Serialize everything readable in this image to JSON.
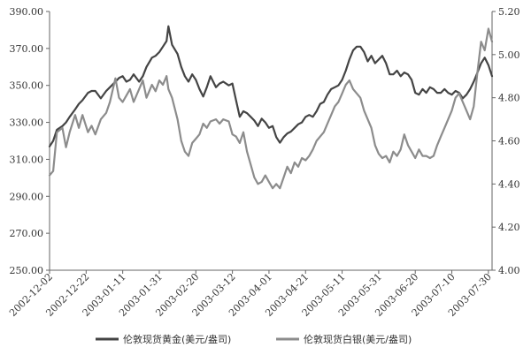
{
  "chart_data": {
    "type": "line",
    "title": "",
    "xlabel": "",
    "ylabel_left": "",
    "ylabel_right": "",
    "x_start": "2002-12-02",
    "x_end": "2003-08-01",
    "x_ticks": [
      "2002-12-02",
      "2002-12-22",
      "2003-01-11",
      "2003-01-31",
      "2003-02-20",
      "2003-03-12",
      "2003-04-01",
      "2003-04-21",
      "2003-05-11",
      "2003-05-31",
      "2003-06-20",
      "2003-07-10",
      "2003-07-30"
    ],
    "y_left": {
      "min": 250,
      "max": 390,
      "step": 20,
      "ticks": [
        "250.00",
        "270.00",
        "290.00",
        "310.00",
        "330.00",
        "350.00",
        "370.00",
        "390.00"
      ]
    },
    "y_right": {
      "min": 4.0,
      "max": 5.2,
      "step": 0.2,
      "ticks": [
        "4.00",
        "4.20",
        "4.40",
        "4.60",
        "4.80",
        "5.00",
        "5.20"
      ]
    },
    "grid": false,
    "legend_position": "bottom",
    "series": [
      {
        "name": "伦敦现货黄金(美元/盎司)",
        "axis": "left",
        "color": "#444444",
        "points": [
          [
            "2002-12-02",
            317
          ],
          [
            "2002-12-04",
            320
          ],
          [
            "2002-12-06",
            326
          ],
          [
            "2002-12-09",
            328
          ],
          [
            "2002-12-11",
            330
          ],
          [
            "2002-12-13",
            333
          ],
          [
            "2002-12-16",
            337
          ],
          [
            "2002-12-18",
            340
          ],
          [
            "2002-12-20",
            342
          ],
          [
            "2002-12-23",
            346
          ],
          [
            "2002-12-25",
            347
          ],
          [
            "2002-12-27",
            347
          ],
          [
            "2002-12-30",
            343
          ],
          [
            "2003-01-02",
            347
          ],
          [
            "2003-01-04",
            349
          ],
          [
            "2003-01-07",
            352
          ],
          [
            "2003-01-09",
            354
          ],
          [
            "2003-01-11",
            355
          ],
          [
            "2003-01-13",
            352
          ],
          [
            "2003-01-15",
            353
          ],
          [
            "2003-01-17",
            356
          ],
          [
            "2003-01-20",
            352
          ],
          [
            "2003-01-22",
            355
          ],
          [
            "2003-01-24",
            360
          ],
          [
            "2003-01-27",
            365
          ],
          [
            "2003-01-29",
            366
          ],
          [
            "2003-01-31",
            368
          ],
          [
            "2003-02-02",
            371
          ],
          [
            "2003-02-04",
            374
          ],
          [
            "2003-02-05",
            382
          ],
          [
            "2003-02-07",
            372
          ],
          [
            "2003-02-10",
            367
          ],
          [
            "2003-02-12",
            360
          ],
          [
            "2003-02-14",
            355
          ],
          [
            "2003-02-16",
            352
          ],
          [
            "2003-02-18",
            356
          ],
          [
            "2003-02-20",
            353
          ],
          [
            "2003-02-22",
            348
          ],
          [
            "2003-02-24",
            344
          ],
          [
            "2003-02-26",
            349
          ],
          [
            "2003-02-28",
            355
          ],
          [
            "2003-03-03",
            349
          ],
          [
            "2003-03-05",
            351
          ],
          [
            "2003-03-07",
            352
          ],
          [
            "2003-03-10",
            350
          ],
          [
            "2003-03-12",
            351
          ],
          [
            "2003-03-14",
            342
          ],
          [
            "2003-03-16",
            333
          ],
          [
            "2003-03-18",
            336
          ],
          [
            "2003-03-20",
            335
          ],
          [
            "2003-03-22",
            333
          ],
          [
            "2003-03-24",
            331
          ],
          [
            "2003-03-26",
            328
          ],
          [
            "2003-03-28",
            332
          ],
          [
            "2003-03-30",
            330
          ],
          [
            "2003-04-01",
            327
          ],
          [
            "2003-04-03",
            328
          ],
          [
            "2003-04-05",
            322
          ],
          [
            "2003-04-07",
            319
          ],
          [
            "2003-04-09",
            322
          ],
          [
            "2003-04-11",
            324
          ],
          [
            "2003-04-13",
            325
          ],
          [
            "2003-04-15",
            327
          ],
          [
            "2003-04-17",
            329
          ],
          [
            "2003-04-19",
            330
          ],
          [
            "2003-04-21",
            333
          ],
          [
            "2003-04-23",
            334
          ],
          [
            "2003-04-25",
            333
          ],
          [
            "2003-04-27",
            336
          ],
          [
            "2003-04-29",
            340
          ],
          [
            "2003-05-01",
            341
          ],
          [
            "2003-05-03",
            345
          ],
          [
            "2003-05-05",
            348
          ],
          [
            "2003-05-07",
            349
          ],
          [
            "2003-05-09",
            350
          ],
          [
            "2003-05-11",
            353
          ],
          [
            "2003-05-13",
            358
          ],
          [
            "2003-05-15",
            364
          ],
          [
            "2003-05-17",
            369
          ],
          [
            "2003-05-19",
            371
          ],
          [
            "2003-05-21",
            371
          ],
          [
            "2003-05-23",
            368
          ],
          [
            "2003-05-25",
            363
          ],
          [
            "2003-05-27",
            366
          ],
          [
            "2003-05-29",
            362
          ],
          [
            "2003-05-31",
            364
          ],
          [
            "2003-06-02",
            366
          ],
          [
            "2003-06-04",
            362
          ],
          [
            "2003-06-06",
            356
          ],
          [
            "2003-06-08",
            356
          ],
          [
            "2003-06-10",
            358
          ],
          [
            "2003-06-12",
            355
          ],
          [
            "2003-06-14",
            357
          ],
          [
            "2003-06-16",
            356
          ],
          [
            "2003-06-18",
            353
          ],
          [
            "2003-06-20",
            346
          ],
          [
            "2003-06-22",
            345
          ],
          [
            "2003-06-24",
            348
          ],
          [
            "2003-06-26",
            346
          ],
          [
            "2003-06-28",
            349
          ],
          [
            "2003-06-30",
            348
          ],
          [
            "2003-07-02",
            346
          ],
          [
            "2003-07-04",
            346
          ],
          [
            "2003-07-06",
            348
          ],
          [
            "2003-07-08",
            346
          ],
          [
            "2003-07-10",
            345
          ],
          [
            "2003-07-12",
            347
          ],
          [
            "2003-07-14",
            346
          ],
          [
            "2003-07-16",
            343
          ],
          [
            "2003-07-18",
            345
          ],
          [
            "2003-07-20",
            348
          ],
          [
            "2003-07-22",
            352
          ],
          [
            "2003-07-24",
            357
          ],
          [
            "2003-07-26",
            362
          ],
          [
            "2003-07-28",
            365
          ],
          [
            "2003-07-30",
            361
          ],
          [
            "2003-08-01",
            355
          ]
        ]
      },
      {
        "name": "伦敦现货白银(美元/盎司)",
        "axis": "right",
        "color": "#8c8c8c",
        "points": [
          [
            "2002-12-02",
            4.44
          ],
          [
            "2002-12-04",
            4.46
          ],
          [
            "2002-12-06",
            4.64
          ],
          [
            "2002-12-09",
            4.66
          ],
          [
            "2002-12-11",
            4.57
          ],
          [
            "2002-12-13",
            4.64
          ],
          [
            "2002-12-16",
            4.72
          ],
          [
            "2002-12-18",
            4.66
          ],
          [
            "2002-12-20",
            4.72
          ],
          [
            "2002-12-23",
            4.64
          ],
          [
            "2002-12-25",
            4.67
          ],
          [
            "2002-12-27",
            4.63
          ],
          [
            "2002-12-30",
            4.7
          ],
          [
            "2003-01-02",
            4.73
          ],
          [
            "2003-01-04",
            4.78
          ],
          [
            "2003-01-07",
            4.89
          ],
          [
            "2003-01-09",
            4.8
          ],
          [
            "2003-01-11",
            4.78
          ],
          [
            "2003-01-13",
            4.81
          ],
          [
            "2003-01-15",
            4.84
          ],
          [
            "2003-01-17",
            4.78
          ],
          [
            "2003-01-20",
            4.84
          ],
          [
            "2003-01-22",
            4.88
          ],
          [
            "2003-01-24",
            4.8
          ],
          [
            "2003-01-27",
            4.86
          ],
          [
            "2003-01-29",
            4.83
          ],
          [
            "2003-01-31",
            4.88
          ],
          [
            "2003-02-02",
            4.86
          ],
          [
            "2003-02-04",
            4.9
          ],
          [
            "2003-02-05",
            4.84
          ],
          [
            "2003-02-07",
            4.8
          ],
          [
            "2003-02-10",
            4.7
          ],
          [
            "2003-02-12",
            4.6
          ],
          [
            "2003-02-14",
            4.55
          ],
          [
            "2003-02-16",
            4.53
          ],
          [
            "2003-02-18",
            4.59
          ],
          [
            "2003-02-20",
            4.61
          ],
          [
            "2003-02-22",
            4.63
          ],
          [
            "2003-02-24",
            4.68
          ],
          [
            "2003-02-26",
            4.66
          ],
          [
            "2003-02-28",
            4.69
          ],
          [
            "2003-03-03",
            4.7
          ],
          [
            "2003-03-05",
            4.68
          ],
          [
            "2003-03-07",
            4.7
          ],
          [
            "2003-03-10",
            4.69
          ],
          [
            "2003-03-12",
            4.63
          ],
          [
            "2003-03-14",
            4.62
          ],
          [
            "2003-03-16",
            4.59
          ],
          [
            "2003-03-18",
            4.64
          ],
          [
            "2003-03-20",
            4.55
          ],
          [
            "2003-03-22",
            4.49
          ],
          [
            "2003-03-24",
            4.43
          ],
          [
            "2003-03-26",
            4.4
          ],
          [
            "2003-03-28",
            4.41
          ],
          [
            "2003-03-30",
            4.44
          ],
          [
            "2003-04-01",
            4.41
          ],
          [
            "2003-04-03",
            4.38
          ],
          [
            "2003-04-05",
            4.4
          ],
          [
            "2003-04-07",
            4.38
          ],
          [
            "2003-04-09",
            4.43
          ],
          [
            "2003-04-11",
            4.48
          ],
          [
            "2003-04-13",
            4.45
          ],
          [
            "2003-04-15",
            4.5
          ],
          [
            "2003-04-17",
            4.48
          ],
          [
            "2003-04-19",
            4.52
          ],
          [
            "2003-04-21",
            4.51
          ],
          [
            "2003-04-23",
            4.53
          ],
          [
            "2003-04-25",
            4.56
          ],
          [
            "2003-04-27",
            4.6
          ],
          [
            "2003-04-29",
            4.62
          ],
          [
            "2003-05-01",
            4.64
          ],
          [
            "2003-05-03",
            4.68
          ],
          [
            "2003-05-05",
            4.72
          ],
          [
            "2003-05-07",
            4.76
          ],
          [
            "2003-05-09",
            4.78
          ],
          [
            "2003-05-11",
            4.82
          ],
          [
            "2003-05-13",
            4.86
          ],
          [
            "2003-05-15",
            4.88
          ],
          [
            "2003-05-17",
            4.84
          ],
          [
            "2003-05-19",
            4.82
          ],
          [
            "2003-05-21",
            4.8
          ],
          [
            "2003-05-23",
            4.74
          ],
          [
            "2003-05-25",
            4.7
          ],
          [
            "2003-05-27",
            4.66
          ],
          [
            "2003-05-29",
            4.58
          ],
          [
            "2003-05-31",
            4.54
          ],
          [
            "2003-06-02",
            4.52
          ],
          [
            "2003-06-04",
            4.53
          ],
          [
            "2003-06-06",
            4.5
          ],
          [
            "2003-06-08",
            4.55
          ],
          [
            "2003-06-10",
            4.53
          ],
          [
            "2003-06-12",
            4.56
          ],
          [
            "2003-06-14",
            4.63
          ],
          [
            "2003-06-16",
            4.58
          ],
          [
            "2003-06-18",
            4.55
          ],
          [
            "2003-06-20",
            4.52
          ],
          [
            "2003-06-22",
            4.56
          ],
          [
            "2003-06-24",
            4.53
          ],
          [
            "2003-06-26",
            4.53
          ],
          [
            "2003-06-28",
            4.52
          ],
          [
            "2003-06-30",
            4.53
          ],
          [
            "2003-07-02",
            4.58
          ],
          [
            "2003-07-04",
            4.62
          ],
          [
            "2003-07-06",
            4.66
          ],
          [
            "2003-07-08",
            4.7
          ],
          [
            "2003-07-10",
            4.74
          ],
          [
            "2003-07-12",
            4.8
          ],
          [
            "2003-07-14",
            4.82
          ],
          [
            "2003-07-16",
            4.78
          ],
          [
            "2003-07-18",
            4.74
          ],
          [
            "2003-07-20",
            4.7
          ],
          [
            "2003-07-22",
            4.76
          ],
          [
            "2003-07-24",
            4.92
          ],
          [
            "2003-07-26",
            5.06
          ],
          [
            "2003-07-28",
            5.02
          ],
          [
            "2003-07-30",
            5.12
          ],
          [
            "2003-08-01",
            5.06
          ]
        ]
      }
    ]
  }
}
